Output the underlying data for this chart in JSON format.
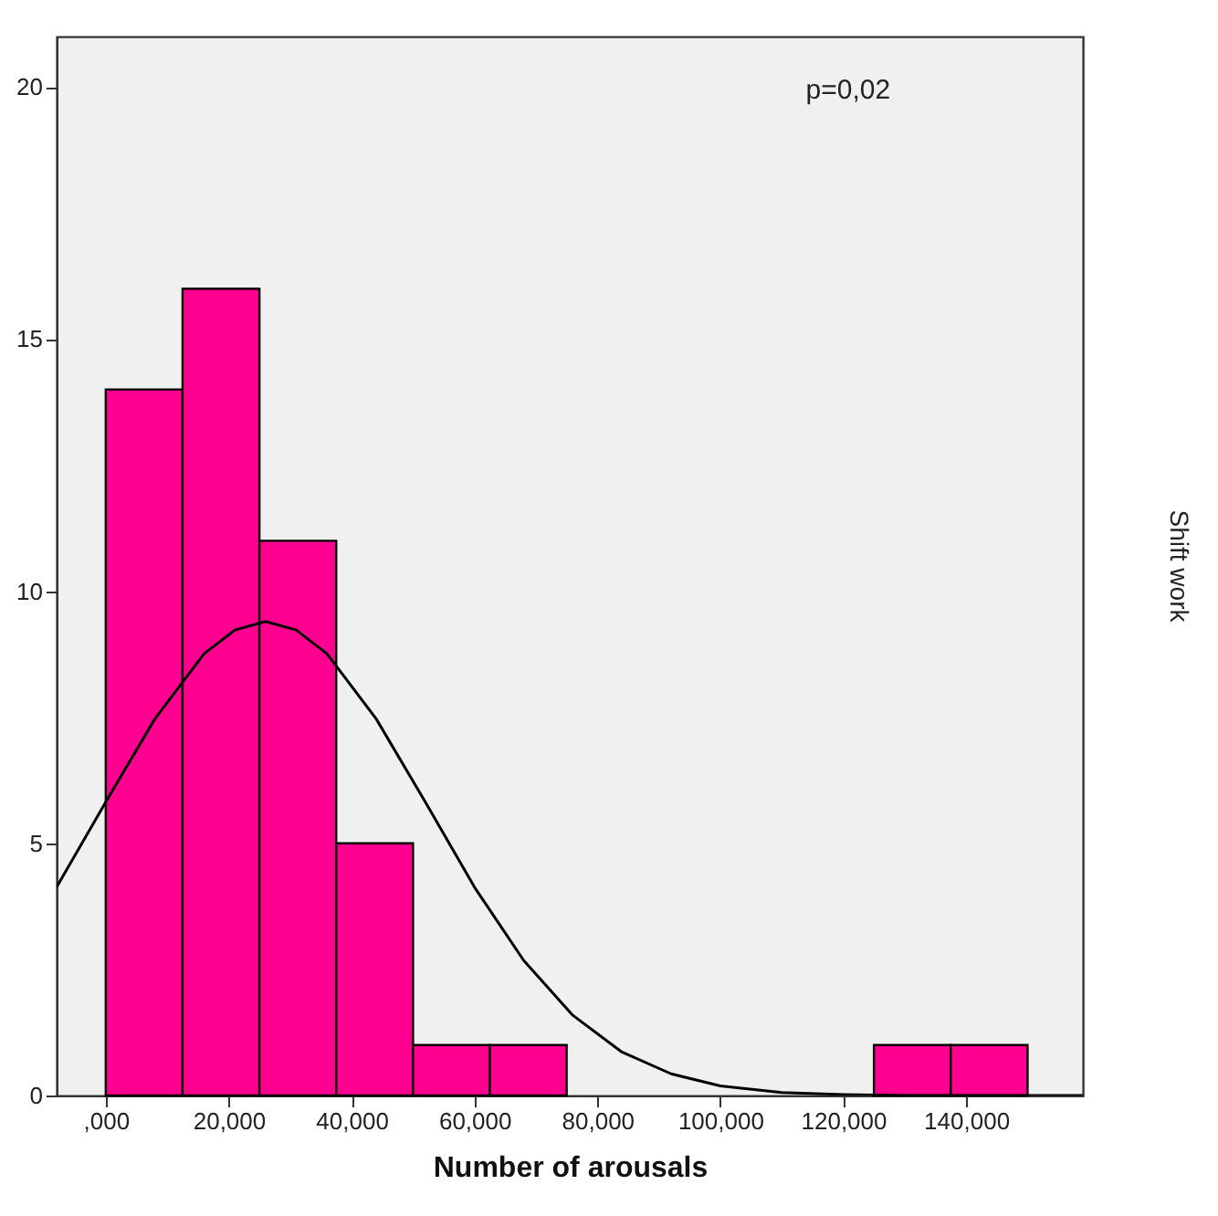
{
  "chart_data": {
    "type": "histogram",
    "xlabel": "Number of arousals",
    "y2label": "Shift work",
    "annotations": [
      "p=0,02"
    ],
    "bins": [
      0,
      12500,
      25000,
      37500,
      50000,
      62500,
      75000,
      87500,
      100000,
      112500,
      125000,
      137500,
      150000
    ],
    "values": [
      14,
      16,
      11,
      5,
      1,
      1,
      0,
      0,
      0,
      0,
      1,
      1
    ],
    "color": "#ff0090",
    "series": [
      {
        "type": "line",
        "color": "#000000",
        "x": [
          -8000,
          0,
          8000,
          16000,
          21000,
          26000,
          31000,
          36000,
          44000,
          52000,
          60000,
          68000,
          76000,
          84000,
          92000,
          100000,
          110000,
          120000,
          130000,
          145000,
          159000
        ],
        "values": [
          4.13,
          5.82,
          7.47,
          8.76,
          9.23,
          9.4,
          9.23,
          8.76,
          7.47,
          5.82,
          4.13,
          2.68,
          1.59,
          0.86,
          0.43,
          0.19,
          0.06,
          0.02,
          0.0,
          0.0,
          0.0
        ]
      }
    ],
    "xlim": [
      -8000,
      159000
    ],
    "ylim": [
      0,
      21
    ],
    "xticks": [
      {
        "value": 0,
        "label": ",000"
      },
      {
        "value": 20000,
        "label": "20,000"
      },
      {
        "value": 40000,
        "label": "40,000"
      },
      {
        "value": 60000,
        "label": "60,000"
      },
      {
        "value": 80000,
        "label": "80,000"
      },
      {
        "value": 100000,
        "label": "100,000"
      },
      {
        "value": 120000,
        "label": "120,000"
      },
      {
        "value": 140000,
        "label": "140,000"
      }
    ],
    "yticks": [
      0,
      5,
      10,
      15,
      20
    ],
    "grid": false
  }
}
